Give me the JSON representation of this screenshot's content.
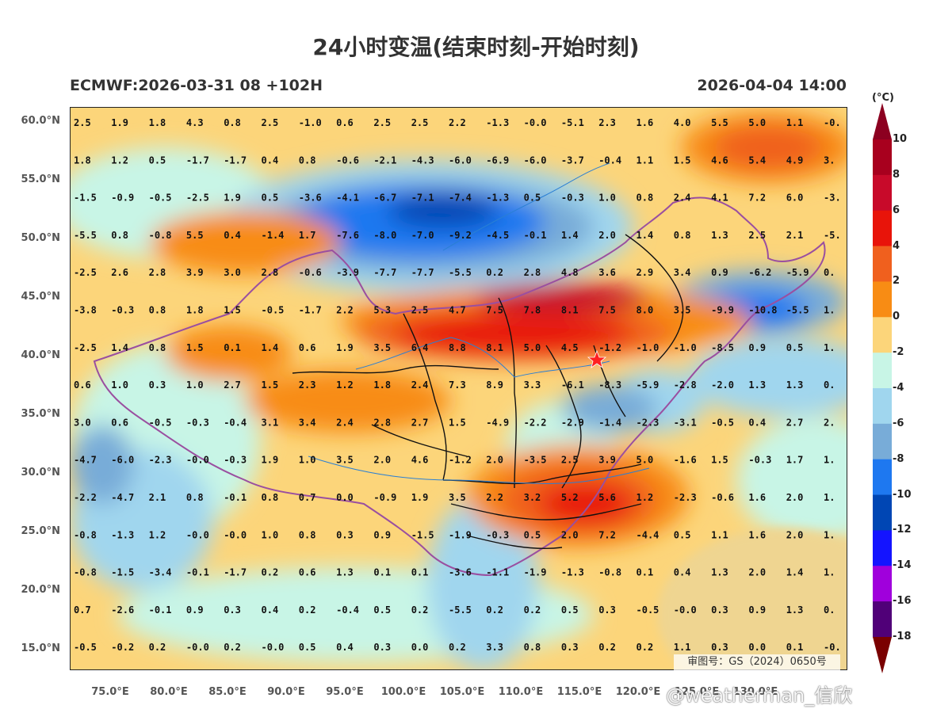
{
  "header": {
    "title": "24小时变温(结束时刻-开始时刻)",
    "model_run": "ECMWF:2026-03-31 08 +102H",
    "valid_time": "2026-04-04 14:00"
  },
  "axes": {
    "lat_labels": [
      "60.0°N",
      "55.0°N",
      "50.0°N",
      "45.0°N",
      "40.0°N",
      "35.0°N",
      "30.0°N",
      "25.0°N",
      "20.0°N",
      "15.0°N"
    ],
    "lon_labels": [
      "75.0°E",
      "80.0°E",
      "85.0°E",
      "90.0°E",
      "95.0°E",
      "100.0°E",
      "105.0°E",
      "110.0°E",
      "115.0°E",
      "120.0°E",
      "125.0°E",
      "130.0°E"
    ]
  },
  "colorbar": {
    "unit": "(°C)",
    "labels": [
      "10",
      "8",
      "6",
      "4",
      "2",
      "0",
      "-2",
      "-4",
      "-6",
      "-8",
      "-10",
      "-12",
      "-14",
      "-16",
      "-18"
    ],
    "colors": [
      "#a8001e",
      "#c80a2a",
      "#e8140a",
      "#f0601e",
      "#f88c14",
      "#fcd57a",
      "#c8f5e6",
      "#a0d6ee",
      "#78acd8",
      "#1e78f0",
      "#0046b4",
      "#1414ff",
      "#a000dc",
      "#500078",
      "#7a0000"
    ]
  },
  "grid_values": [
    [
      "2.5",
      "1.9",
      "1.8",
      "4.3",
      "0.8",
      "2.5",
      "-1.0",
      "0.6",
      "2.5",
      "2.5",
      "2.2",
      "-1.3",
      "-0.0",
      "-5.1",
      "2.3",
      "1.6",
      "4.0",
      "5.5",
      "5.0",
      "1.1",
      "-0."
    ],
    [
      "1.8",
      "1.2",
      "0.5",
      "-1.7",
      "-1.7",
      "0.4",
      "0.8",
      "-0.6",
      "-2.1",
      "-4.3",
      "-6.0",
      "-6.9",
      "-6.0",
      "-3.7",
      "-0.4",
      "1.1",
      "1.5",
      "4.6",
      "5.4",
      "4.9",
      "3."
    ],
    [
      "-1.5",
      "-0.9",
      "-0.5",
      "-2.5",
      "1.9",
      "0.5",
      "-3.6",
      "-4.1",
      "-6.7",
      "-7.1",
      "-7.4",
      "-1.3",
      "0.5",
      "-0.3",
      "1.0",
      "0.8",
      "2.4",
      "4.1",
      "7.2",
      "6.0",
      "-3."
    ],
    [
      "-5.5",
      "0.8",
      "-0.8",
      "5.5",
      "0.4",
      "-1.4",
      "1.7",
      "-7.6",
      "-8.0",
      "-7.0",
      "-9.2",
      "-4.5",
      "-0.1",
      "1.4",
      "2.0",
      "1.4",
      "0.8",
      "1.3",
      "2.5",
      "2.1",
      "-5."
    ],
    [
      "-2.5",
      "2.6",
      "2.8",
      "3.9",
      "3.0",
      "2.8",
      "-0.6",
      "-3.9",
      "-7.7",
      "-7.7",
      "-5.5",
      "0.2",
      "2.8",
      "4.8",
      "3.6",
      "2.9",
      "3.4",
      "0.9",
      "-6.2",
      "-5.9",
      "0."
    ],
    [
      "-3.8",
      "-0.3",
      "0.8",
      "1.8",
      "1.5",
      "-0.5",
      "-1.7",
      "2.2",
      "5.3",
      "2.5",
      "4.7",
      "7.5",
      "7.8",
      "8.1",
      "7.5",
      "8.0",
      "3.5",
      "-9.9",
      "-10.8",
      "-5.5",
      "1."
    ],
    [
      "-2.5",
      "1.4",
      "0.8",
      "1.5",
      "0.1",
      "1.4",
      "0.6",
      "1.9",
      "3.5",
      "6.4",
      "8.8",
      "8.1",
      "5.0",
      "4.5",
      "-1.2",
      "-1.0",
      "-1.0",
      "-8.5",
      "0.9",
      "0.5",
      "1."
    ],
    [
      "0.6",
      "1.0",
      "0.3",
      "1.0",
      "2.7",
      "1.5",
      "2.3",
      "1.2",
      "1.8",
      "2.4",
      "7.3",
      "8.9",
      "3.3",
      "-6.1",
      "-8.3",
      "-5.9",
      "-2.8",
      "-2.0",
      "1.3",
      "1.3",
      "0."
    ],
    [
      "3.0",
      "0.6",
      "-0.5",
      "-0.3",
      "-0.4",
      "3.1",
      "3.4",
      "2.4",
      "2.8",
      "2.7",
      "1.5",
      "-4.9",
      "-2.2",
      "-2.9",
      "-1.4",
      "-2.3",
      "-3.1",
      "-0.5",
      "0.4",
      "2.7",
      "2."
    ],
    [
      "-4.7",
      "-6.0",
      "-2.3",
      "-0.0",
      "-0.3",
      "1.9",
      "1.0",
      "3.5",
      "2.0",
      "4.6",
      "-1.2",
      "2.0",
      "-3.5",
      "2.5",
      "3.9",
      "5.0",
      "-1.6",
      "1.5",
      "-0.3",
      "1.7",
      "1."
    ],
    [
      "-2.2",
      "-4.7",
      "2.1",
      "0.8",
      "-0.1",
      "0.8",
      "0.7",
      "0.0",
      "-0.9",
      "1.9",
      "3.5",
      "2.2",
      "3.2",
      "5.2",
      "5.6",
      "1.2",
      "-2.3",
      "-0.6",
      "1.6",
      "2.0",
      "1."
    ],
    [
      "-0.8",
      "-1.3",
      "1.2",
      "-0.0",
      "-0.0",
      "1.0",
      "0.8",
      "0.3",
      "0.9",
      "-1.5",
      "-1.9",
      "-0.3",
      "0.5",
      "2.0",
      "7.2",
      "-4.4",
      "0.5",
      "1.1",
      "1.6",
      "2.0",
      "1."
    ],
    [
      "-0.8",
      "-1.5",
      "-3.4",
      "-0.1",
      "-1.7",
      "0.2",
      "0.6",
      "1.3",
      "0.1",
      "0.1",
      "-3.6",
      "-1.1",
      "-1.9",
      "-1.3",
      "-0.8",
      "0.1",
      "0.4",
      "1.3",
      "2.0",
      "1.4",
      "1."
    ],
    [
      "0.7",
      "-2.6",
      "-0.1",
      "0.9",
      "0.3",
      "0.4",
      "0.2",
      "-0.4",
      "0.5",
      "0.2",
      "-5.5",
      "0.2",
      "0.2",
      "0.5",
      "0.3",
      "-0.5",
      "-0.0",
      "0.3",
      "0.9",
      "1.3",
      "0."
    ],
    [
      "-0.5",
      "-0.2",
      "0.2",
      "-0.0",
      "0.2",
      "-0.0",
      "0.5",
      "0.4",
      "0.3",
      "0.0",
      "0.2",
      "3.3",
      "0.8",
      "0.3",
      "0.2",
      "0.2",
      "1.1",
      "0.3",
      "0.0",
      "0.1",
      "-0."
    ]
  ],
  "map": {
    "marker_icon": "star-icon",
    "approval_text": "审图号：GS（2024）0650号"
  },
  "watermark": "@weatherman_信欣"
}
